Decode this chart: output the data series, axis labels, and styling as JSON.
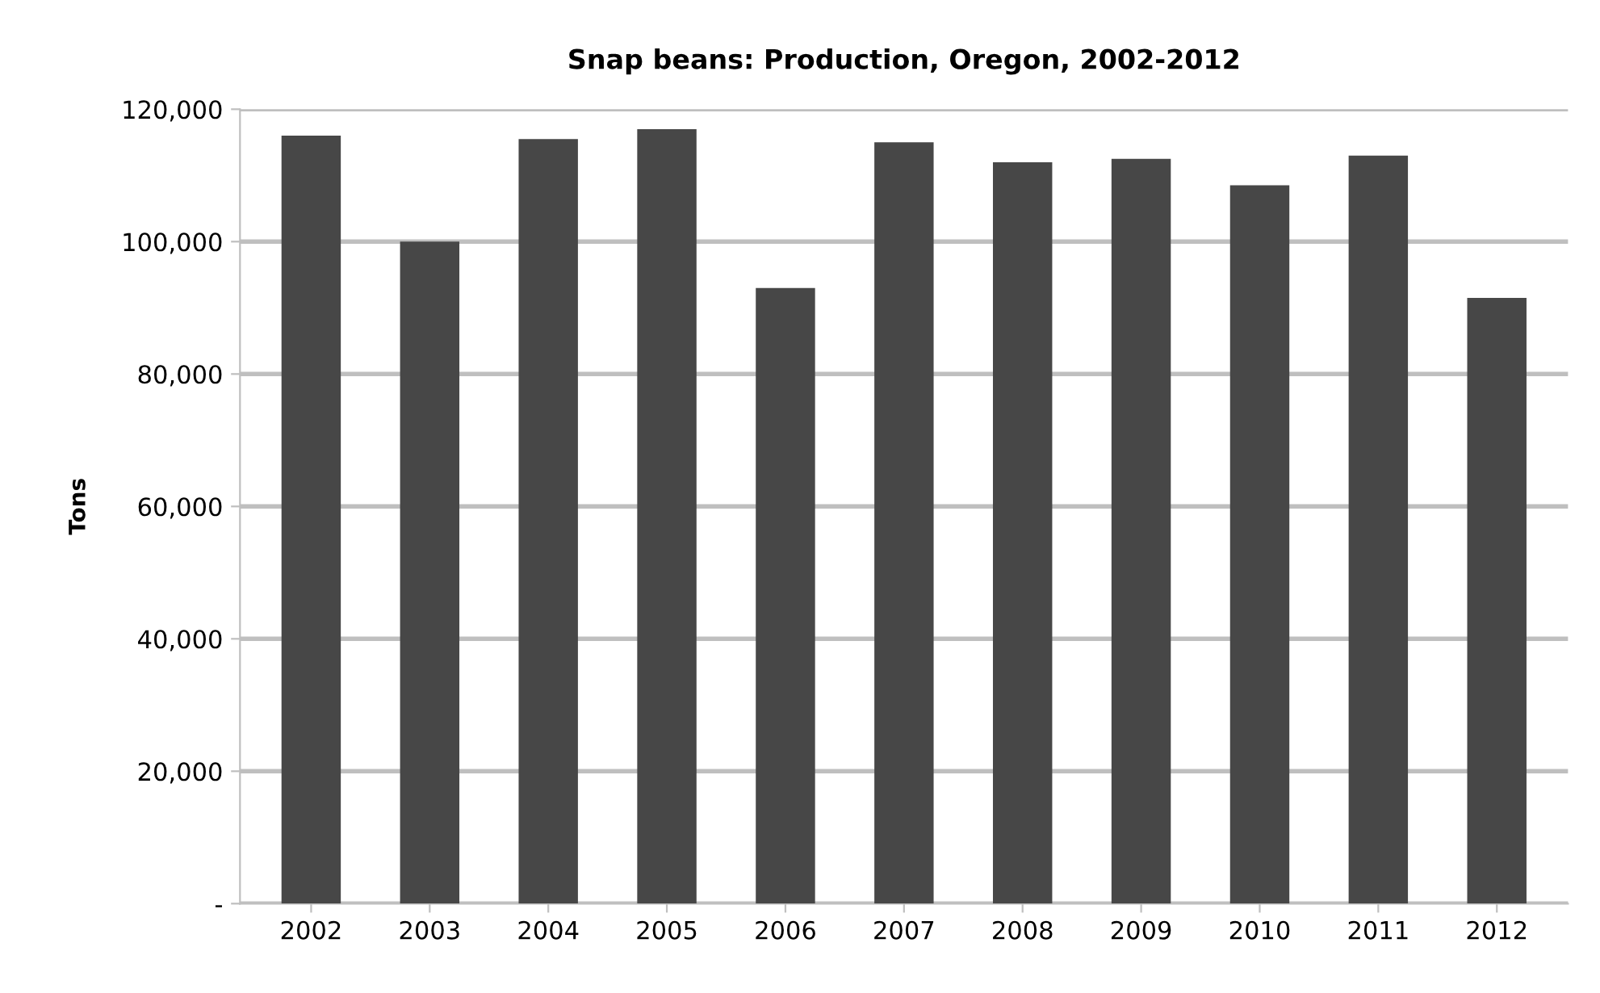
{
  "chart_data": {
    "type": "bar",
    "title": "Snap beans: Production, Oregon, 2002-2012",
    "ylabel": "Tons",
    "categories": [
      "2002",
      "2003",
      "2004",
      "2005",
      "2006",
      "2007",
      "2008",
      "2009",
      "2010",
      "2011",
      "2012"
    ],
    "values": [
      116000,
      100000,
      115500,
      117000,
      93000,
      115000,
      112000,
      112500,
      108500,
      113000,
      91500
    ],
    "color": "#474747",
    "ylim": [
      0,
      120000
    ],
    "yticks": [
      {
        "value": 0,
        "label": "-"
      },
      {
        "value": 20000,
        "label": "20,000"
      },
      {
        "value": 40000,
        "label": "40,000"
      },
      {
        "value": 60000,
        "label": "60,000"
      },
      {
        "value": 80000,
        "label": "80,000"
      },
      {
        "value": 100000,
        "label": "100,000"
      },
      {
        "value": 120000,
        "label": "120,000"
      }
    ],
    "grid": "y"
  }
}
